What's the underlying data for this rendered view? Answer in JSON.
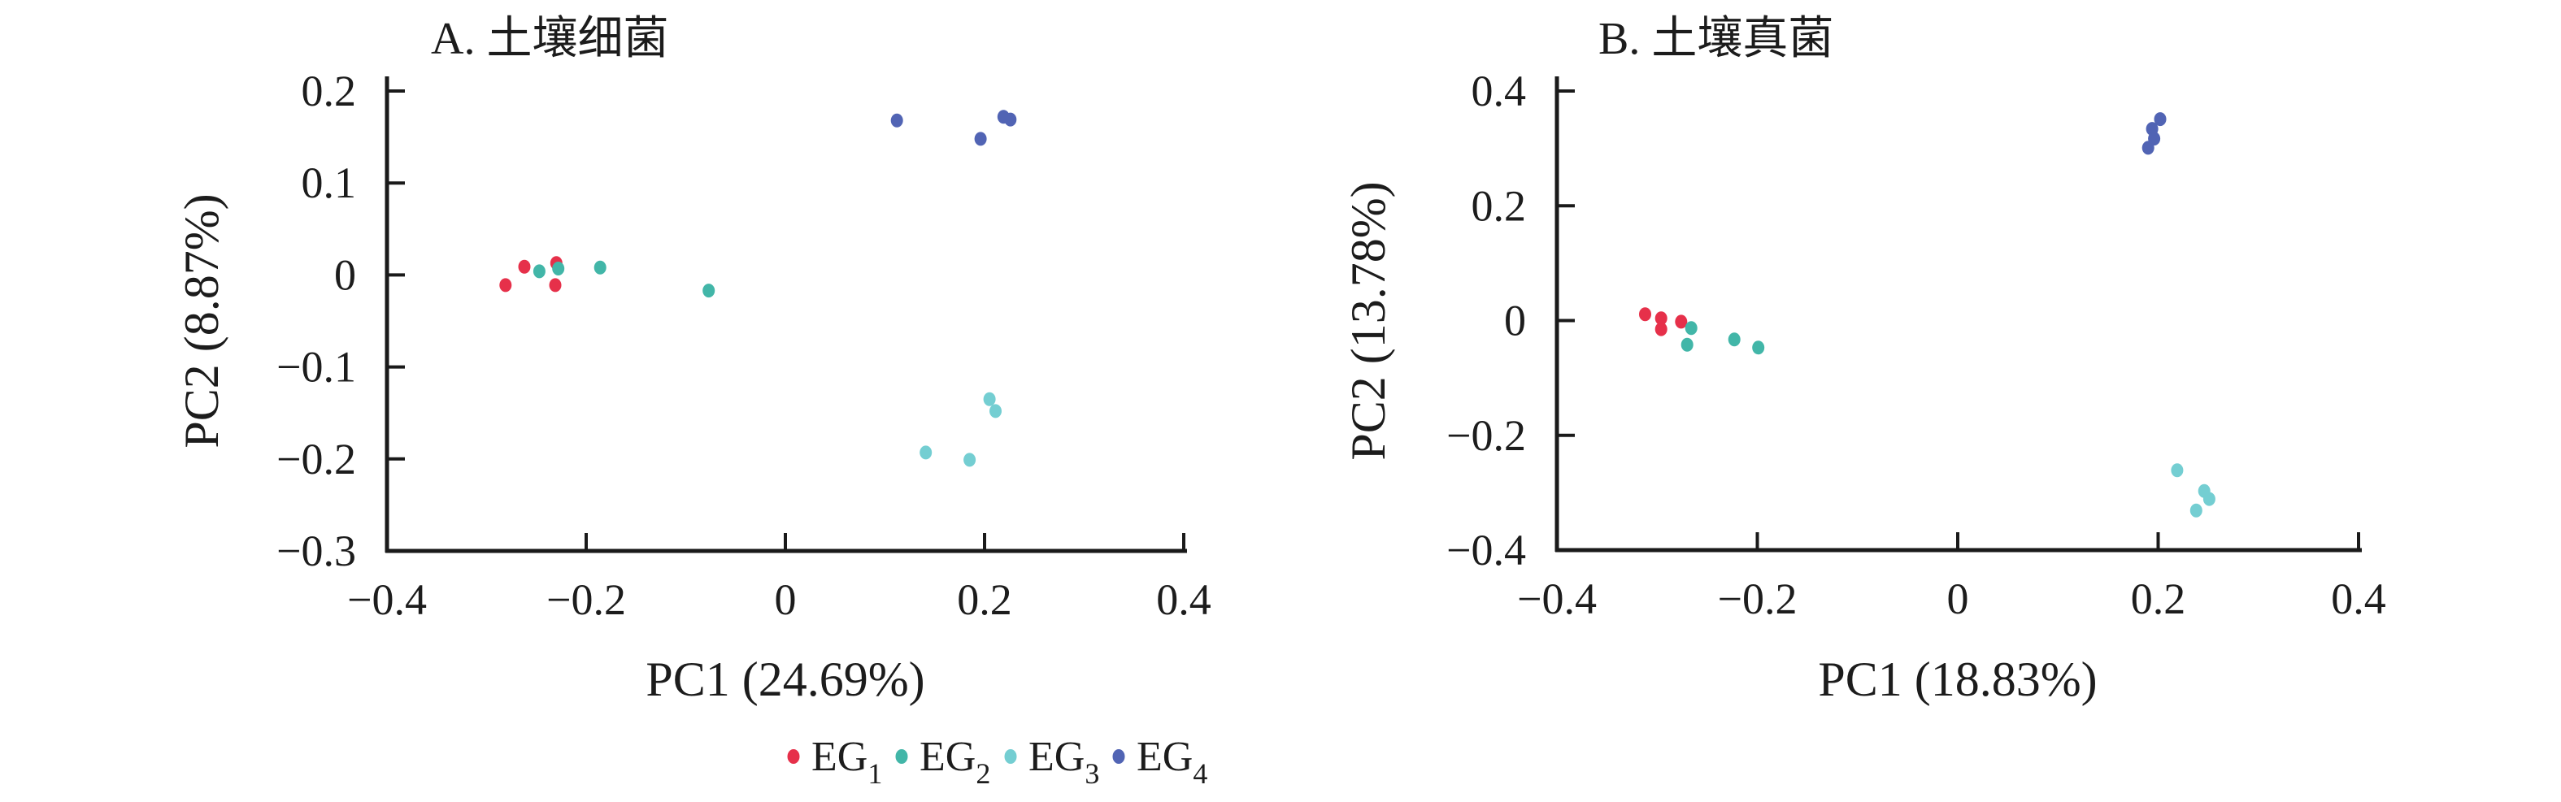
{
  "figure": {
    "background": "#ffffff",
    "text_color": "#1c1c1c",
    "axis_color": "#1a1a1a"
  },
  "colors": {
    "EG1": "#e6304a",
    "EG2": "#42b6a8",
    "EG3": "#74ced2",
    "EG4": "#5164b4"
  },
  "legend": {
    "items": [
      {
        "name": "EG",
        "sub": "1",
        "series": "EG1",
        "color": "#e6304a"
      },
      {
        "name": "EG",
        "sub": "2",
        "series": "EG2",
        "color": "#42b6a8"
      },
      {
        "name": "EG",
        "sub": "3",
        "series": "EG3",
        "color": "#74ced2"
      },
      {
        "name": "EG",
        "sub": "4",
        "series": "EG4",
        "color": "#5164b4"
      }
    ]
  },
  "chart_data": [
    {
      "id": "A",
      "type": "scatter",
      "title": "A. 土壤细菌",
      "xlabel": "PC1 (24.69%)",
      "ylabel": "PC2 (8.87%)",
      "xlim": [
        -0.4,
        0.4
      ],
      "ylim": [
        -0.3,
        0.2
      ],
      "grid": false,
      "x_ticks": [
        {
          "v": -0.4,
          "label": "−0.4"
        },
        {
          "v": -0.2,
          "label": "−0.2"
        },
        {
          "v": 0,
          "label": "0"
        },
        {
          "v": 0.2,
          "label": "0.2"
        },
        {
          "v": 0.4,
          "label": "0.4"
        }
      ],
      "y_ticks": [
        {
          "v": 0.2,
          "label": "0.2"
        },
        {
          "v": 0.1,
          "label": "0.1"
        },
        {
          "v": 0,
          "label": "0"
        },
        {
          "v": -0.1,
          "label": "−0.1"
        },
        {
          "v": -0.2,
          "label": "−0.2"
        },
        {
          "v": -0.3,
          "label": "−0.3"
        }
      ],
      "series": [
        {
          "name": "EG1",
          "color_key": "EG1",
          "points": [
            [
              -0.281,
              -0.011
            ],
            [
              -0.262,
              0.009
            ],
            [
              -0.231,
              -0.011
            ],
            [
              -0.23,
              0.013
            ]
          ]
        },
        {
          "name": "EG2",
          "color_key": "EG2",
          "points": [
            [
              -0.247,
              0.004
            ],
            [
              -0.228,
              0.007
            ],
            [
              -0.186,
              0.008
            ],
            [
              -0.077,
              -0.017
            ]
          ]
        },
        {
          "name": "EG3",
          "color_key": "EG3",
          "points": [
            [
              0.205,
              -0.135
            ],
            [
              0.211,
              -0.148
            ],
            [
              0.141,
              -0.193
            ],
            [
              0.185,
              -0.201
            ]
          ]
        },
        {
          "name": "EG4",
          "color_key": "EG4",
          "points": [
            [
              0.112,
              0.168
            ],
            [
              0.196,
              0.148
            ],
            [
              0.219,
              0.172
            ],
            [
              0.226,
              0.169
            ]
          ]
        }
      ]
    },
    {
      "id": "B",
      "type": "scatter",
      "title": "B. 土壤真菌",
      "xlabel": "PC1 (18.83%)",
      "ylabel": "PC2 (13.78%)",
      "xlim": [
        -0.4,
        0.4
      ],
      "ylim": [
        -0.4,
        0.4
      ],
      "grid": false,
      "x_ticks": [
        {
          "v": -0.4,
          "label": "−0.4"
        },
        {
          "v": -0.2,
          "label": "−0.2"
        },
        {
          "v": 0,
          "label": "0"
        },
        {
          "v": 0.2,
          "label": "0.2"
        },
        {
          "v": 0.4,
          "label": "0.4"
        }
      ],
      "y_ticks": [
        {
          "v": 0.4,
          "label": "0.4"
        },
        {
          "v": 0.2,
          "label": "0.2"
        },
        {
          "v": 0,
          "label": "0"
        },
        {
          "v": -0.2,
          "label": "−0.2"
        },
        {
          "v": -0.4,
          "label": "−0.4"
        }
      ],
      "series": [
        {
          "name": "EG1",
          "color_key": "EG1",
          "points": [
            [
              -0.312,
              0.011
            ],
            [
              -0.296,
              0.004
            ],
            [
              -0.296,
              -0.015
            ],
            [
              -0.276,
              -0.002
            ]
          ]
        },
        {
          "name": "EG2",
          "color_key": "EG2",
          "points": [
            [
              -0.266,
              -0.013
            ],
            [
              -0.27,
              -0.042
            ],
            [
              -0.223,
              -0.033
            ],
            [
              -0.199,
              -0.047
            ]
          ]
        },
        {
          "name": "EG3",
          "color_key": "EG3",
          "points": [
            [
              0.219,
              -0.261
            ],
            [
              0.246,
              -0.297
            ],
            [
              0.251,
              -0.311
            ],
            [
              0.238,
              -0.331
            ]
          ]
        },
        {
          "name": "EG4",
          "color_key": "EG4",
          "points": [
            [
              0.202,
              0.351
            ],
            [
              0.194,
              0.334
            ],
            [
              0.196,
              0.317
            ],
            [
              0.19,
              0.301
            ]
          ]
        }
      ]
    }
  ]
}
